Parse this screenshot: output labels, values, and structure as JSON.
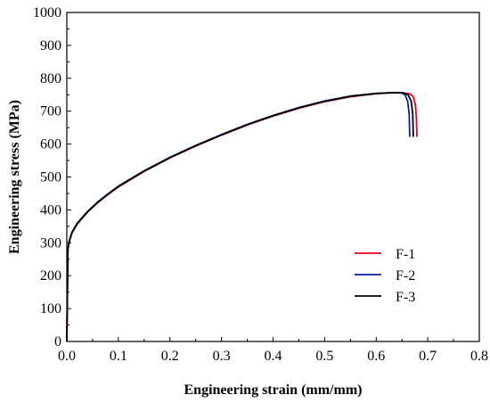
{
  "chart_data": {
    "type": "line",
    "xlabel": "Engineering strain (mm/mm)",
    "ylabel": "Engineering stress (MPa)",
    "xlim": [
      0.0,
      0.8
    ],
    "ylim": [
      0,
      1000
    ],
    "x_ticks": [
      "0.0",
      "0.1",
      "0.2",
      "0.3",
      "0.4",
      "0.5",
      "0.6",
      "0.7",
      "0.8"
    ],
    "y_ticks": [
      "0",
      "100",
      "200",
      "300",
      "400",
      "500",
      "600",
      "700",
      "800",
      "900",
      "1000"
    ],
    "grid": false,
    "legend_position": "bottom-right",
    "series": [
      {
        "name": "F-1",
        "color": "#e8001c",
        "x": [
          0.0,
          0.002,
          0.005,
          0.01,
          0.02,
          0.04,
          0.06,
          0.08,
          0.1,
          0.15,
          0.2,
          0.25,
          0.3,
          0.35,
          0.4,
          0.45,
          0.5,
          0.55,
          0.6,
          0.63,
          0.65,
          0.665,
          0.672,
          0.676,
          0.678,
          0.679
        ],
        "y": [
          0,
          280,
          305,
          330,
          357,
          393,
          422,
          447,
          470,
          517,
          558,
          594,
          627,
          658,
          685,
          709,
          729,
          744,
          753,
          756,
          756,
          753,
          744,
          720,
          680,
          622
        ]
      },
      {
        "name": "F-2",
        "color": "#0a1fa0",
        "x": [
          0.0,
          0.002,
          0.005,
          0.01,
          0.02,
          0.04,
          0.06,
          0.08,
          0.1,
          0.15,
          0.2,
          0.25,
          0.3,
          0.35,
          0.4,
          0.45,
          0.5,
          0.55,
          0.6,
          0.63,
          0.648,
          0.656,
          0.661,
          0.664,
          0.665
        ],
        "y": [
          0,
          282,
          307,
          332,
          359,
          395,
          424,
          449,
          472,
          519,
          560,
          596,
          629,
          660,
          687,
          711,
          731,
          746,
          754,
          756,
          756,
          750,
          730,
          690,
          622
        ]
      },
      {
        "name": "F-3",
        "color": "#000000",
        "x": [
          0.0,
          0.002,
          0.005,
          0.01,
          0.02,
          0.04,
          0.06,
          0.08,
          0.1,
          0.15,
          0.2,
          0.25,
          0.3,
          0.35,
          0.4,
          0.45,
          0.5,
          0.55,
          0.6,
          0.63,
          0.65,
          0.662,
          0.668,
          0.671,
          0.672
        ],
        "y": [
          0,
          281,
          306,
          331,
          358,
          394,
          423,
          448,
          471,
          518,
          559,
          595,
          628,
          659,
          686,
          710,
          730,
          745,
          754,
          756,
          756,
          750,
          730,
          690,
          622
        ]
      }
    ]
  }
}
